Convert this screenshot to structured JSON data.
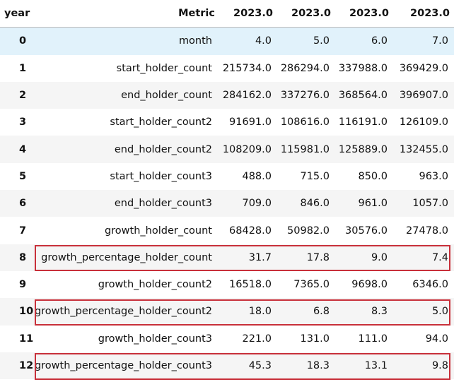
{
  "table": {
    "index_header": "year",
    "columns": [
      "Metric",
      "2023.0",
      "2023.0",
      "2023.0",
      "2023.0"
    ],
    "rows": [
      {
        "index": "0",
        "metric": "month",
        "values": [
          "4.0",
          "5.0",
          "6.0",
          "7.0"
        ]
      },
      {
        "index": "1",
        "metric": "start_holder_count",
        "values": [
          "215734.0",
          "286294.0",
          "337988.0",
          "369429.0"
        ]
      },
      {
        "index": "2",
        "metric": "end_holder_count",
        "values": [
          "284162.0",
          "337276.0",
          "368564.0",
          "396907.0"
        ]
      },
      {
        "index": "3",
        "metric": "start_holder_count2",
        "values": [
          "91691.0",
          "108616.0",
          "116191.0",
          "126109.0"
        ]
      },
      {
        "index": "4",
        "metric": "end_holder_count2",
        "values": [
          "108209.0",
          "115981.0",
          "125889.0",
          "132455.0"
        ]
      },
      {
        "index": "5",
        "metric": "start_holder_count3",
        "values": [
          "488.0",
          "715.0",
          "850.0",
          "963.0"
        ]
      },
      {
        "index": "6",
        "metric": "end_holder_count3",
        "values": [
          "709.0",
          "846.0",
          "961.0",
          "1057.0"
        ]
      },
      {
        "index": "7",
        "metric": "growth_holder_count",
        "values": [
          "68428.0",
          "50982.0",
          "30576.0",
          "27478.0"
        ]
      },
      {
        "index": "8",
        "metric": "growth_percentage_holder_count",
        "values": [
          "31.7",
          "17.8",
          "9.0",
          "7.4"
        ]
      },
      {
        "index": "9",
        "metric": "growth_holder_count2",
        "values": [
          "16518.0",
          "7365.0",
          "9698.0",
          "6346.0"
        ]
      },
      {
        "index": "10",
        "metric": "growth_percentage_holder_count2",
        "values": [
          "18.0",
          "6.8",
          "8.3",
          "5.0"
        ]
      },
      {
        "index": "11",
        "metric": "growth_holder_count3",
        "values": [
          "221.0",
          "131.0",
          "111.0",
          "94.0"
        ]
      },
      {
        "index": "12",
        "metric": "growth_percentage_holder_count3",
        "values": [
          "45.3",
          "18.3",
          "13.1",
          "9.8"
        ]
      }
    ]
  },
  "colors": {
    "hover_row": "#e1f2fb",
    "stripe_row": "#f5f5f5",
    "highlight_border": "#c8303a"
  }
}
